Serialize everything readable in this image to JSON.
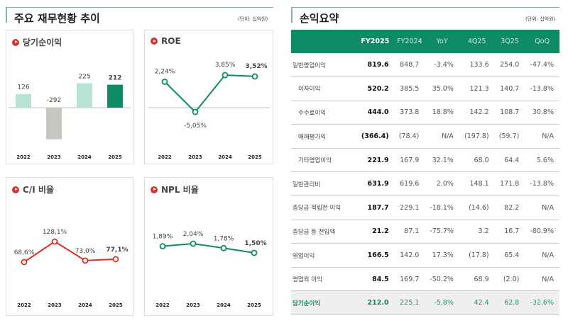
{
  "left": {
    "title": "주요 재무현황 추이",
    "unit": "(단위: 십억원)"
  },
  "right": {
    "title": "손익요약",
    "unit": "(단위: 십억원)"
  },
  "colors": {
    "green": "#0d8a66",
    "mint": "#b6e3d4",
    "gray": "#c9c7c1",
    "red": "#d8322b"
  },
  "chart_data": [
    {
      "title": "당기순이익",
      "type": "bar",
      "categories": [
        "2022",
        "2023",
        "2024",
        "2025"
      ],
      "values": [
        126,
        -292,
        225,
        212
      ],
      "labels": [
        "126",
        "-292",
        "225",
        "212"
      ]
    },
    {
      "title": "ROE",
      "type": "line",
      "categories": [
        "2022",
        "2023",
        "2024",
        "2025"
      ],
      "values": [
        2.24,
        -5.05,
        3.85,
        3.52
      ],
      "labels": [
        "2,24%",
        "-5,05%",
        "3,85%",
        "3,52%"
      ]
    },
    {
      "title": "C/I 비율",
      "type": "line",
      "categories": [
        "2022",
        "2023",
        "2024",
        "2025"
      ],
      "values": [
        68.6,
        128.1,
        73.0,
        77.1
      ],
      "labels": [
        "68,6%",
        "128,1%",
        "73,0%",
        "77,1%"
      ]
    },
    {
      "title": "NPL 비율",
      "type": "line",
      "categories": [
        "2022",
        "2023",
        "2024",
        "2025"
      ],
      "values": [
        1.89,
        2.04,
        1.78,
        1.5
      ],
      "labels": [
        "1,89%",
        "2,04%",
        "1,78%",
        "1,50%"
      ]
    }
  ],
  "table": {
    "headers": [
      "",
      "FY2025",
      "FY2024",
      "YoY",
      "4Q25",
      "3Q25",
      "QoQ"
    ],
    "rows": [
      {
        "label": "일반영업이익",
        "indent": false,
        "cells": [
          "819.6",
          "848.7",
          "-3.4%",
          "133.6",
          "254.0",
          "-47.4%"
        ]
      },
      {
        "label": "이자이익",
        "indent": true,
        "cells": [
          "520.2",
          "385.5",
          "35.0%",
          "121.3",
          "140.7",
          "-13.8%"
        ]
      },
      {
        "label": "수수료이익",
        "indent": true,
        "cells": [
          "444.0",
          "373.8",
          "18.8%",
          "142.2",
          "108.7",
          "30.8%"
        ]
      },
      {
        "label": "매매평가익",
        "indent": true,
        "cells": [
          "(366.4)",
          "(78.4)",
          "N/A",
          "(197.8)",
          "(59.7)",
          "N/A"
        ]
      },
      {
        "label": "기타영업이익",
        "indent": true,
        "cells": [
          "221.9",
          "167.9",
          "32.1%",
          "68.0",
          "64.4",
          "5.6%"
        ]
      },
      {
        "label": "일반관리비",
        "indent": false,
        "cells": [
          "631.9",
          "619.6",
          "2.0%",
          "148.1",
          "171.8",
          "-13.8%"
        ]
      },
      {
        "label": "충당금 적립전 이익",
        "indent": false,
        "cells": [
          "187.7",
          "229.1",
          "-18.1%",
          "(14.6)",
          "82.2",
          "N/A"
        ]
      },
      {
        "label": "충당금 등 전입액",
        "indent": false,
        "cells": [
          "21.2",
          "87.1",
          "-75.7%",
          "3.2",
          "16.7",
          "-80.9%"
        ]
      },
      {
        "label": "영업이익",
        "indent": false,
        "cells": [
          "166.5",
          "142.0",
          "17.3%",
          "(17.8)",
          "65.4",
          "N/A"
        ]
      },
      {
        "label": "영업외 이익",
        "indent": false,
        "cells": [
          "84.5",
          "169.7",
          "-50.2%",
          "68.9",
          "(2.0)",
          "N/A"
        ]
      },
      {
        "label": "당기순이익",
        "indent": false,
        "total": true,
        "cells": [
          "212.0",
          "225.1",
          "-5.8%",
          "42.4",
          "62.8",
          "-32.6%"
        ]
      }
    ]
  }
}
